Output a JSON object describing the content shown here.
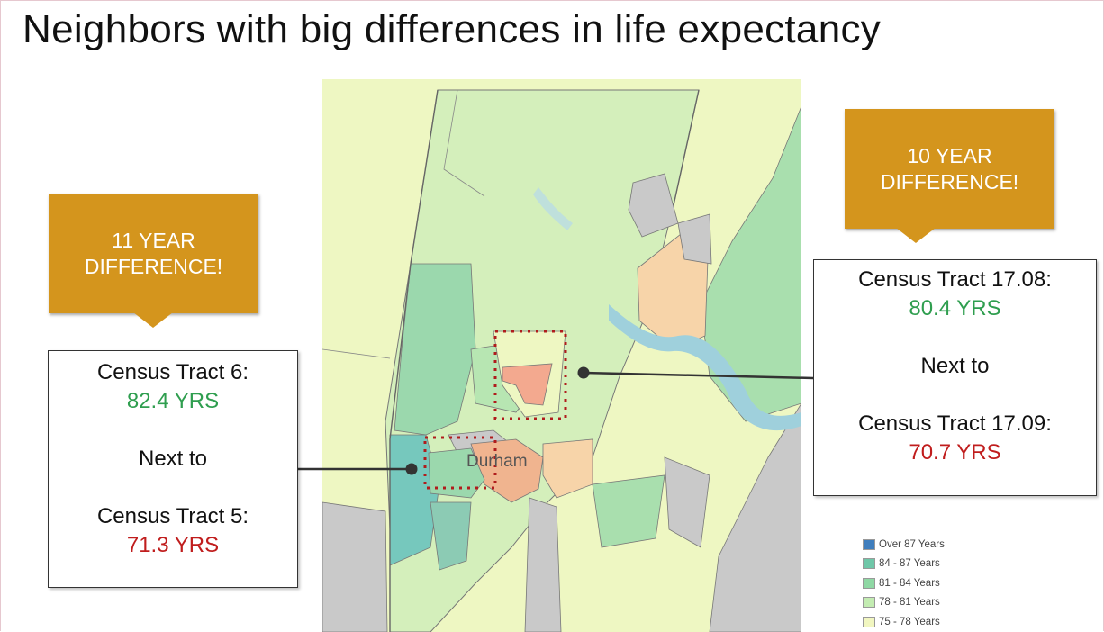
{
  "slide": {
    "title": "Neighbors with big differences in life expectancy"
  },
  "map": {
    "label": "Durham"
  },
  "left_callout": {
    "banner": "11 YEAR\nDIFFERENCE!",
    "tract_a": "Census Tract 6:",
    "value_a": "82.4 YRS",
    "connector": "Next to",
    "tract_b": "Census Tract 5:",
    "value_b": "71.3 YRS"
  },
  "right_callout": {
    "banner": "10 YEAR\nDIFFERENCE!",
    "tract_a": "Census Tract 17.08:",
    "value_a": "80.4 YRS",
    "connector": "Next to",
    "tract_b": "Census Tract 17.09:",
    "value_b": "70.7 YRS"
  },
  "legend": {
    "items": [
      {
        "label": "Over 87 Years",
        "color": "#3f7ebd"
      },
      {
        "label": "84 - 87 Years",
        "color": "#6fc7a8"
      },
      {
        "label": "81 - 84 Years",
        "color": "#8fd8a4"
      },
      {
        "label": "78 - 81 Years",
        "color": "#c3ecb2"
      },
      {
        "label": "75 - 78 Years",
        "color": "#f1f6c0"
      }
    ]
  },
  "colors": {
    "banner": "#d4951d",
    "high_value": "#2f9e4f",
    "low_value": "#c01d1d",
    "highlight_box": "#b01c1c",
    "water": "#9fd0dc",
    "no_data": "#c9c9c9"
  }
}
